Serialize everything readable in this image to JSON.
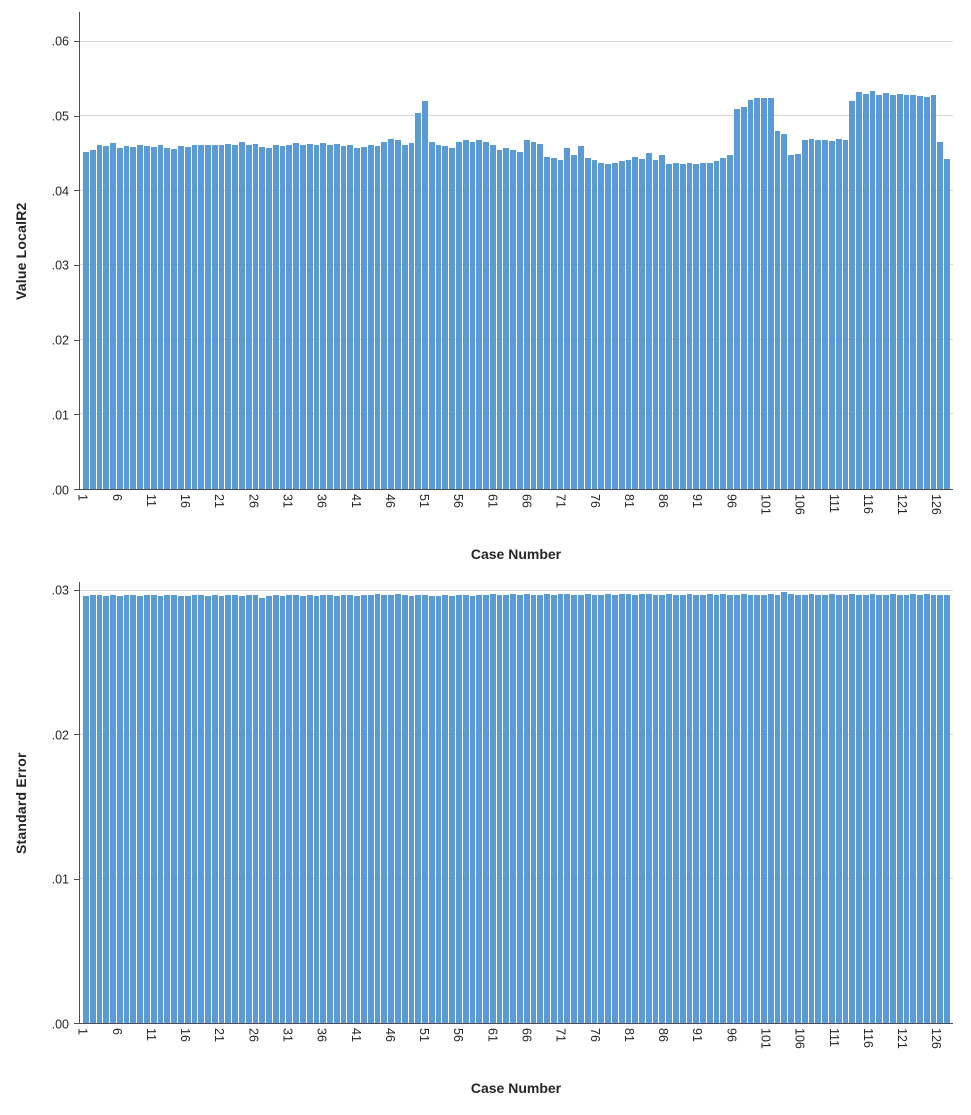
{
  "page": {
    "background": "#ffffff"
  },
  "chart_data": [
    {
      "type": "bar",
      "title": "",
      "ylabel": "Value LocalR2",
      "xlabel": "Case Number",
      "bar_color": "#5A9BD5",
      "grid_color": "#d9d9d9",
      "axis_color": "#4d4d4d",
      "legend": "none",
      "grid": true,
      "n_cases": 128,
      "ymax": 0.064,
      "ylim": [
        0,
        0.06
      ],
      "yticks": {
        "labels": [
          ".00",
          ".01",
          ".02",
          ".03",
          ".04",
          ".05",
          ".06"
        ],
        "values": [
          0,
          0.01,
          0.02,
          0.03,
          0.04,
          0.05,
          0.06
        ]
      },
      "x_tick_start": 1,
      "x_tick_step": 5,
      "x_tick_labels": [
        "1",
        "6",
        "11",
        "16",
        "21",
        "26",
        "31",
        "36",
        "41",
        "46",
        "51",
        "56",
        "61",
        "66",
        "71",
        "76",
        "81",
        "86",
        "91",
        "96",
        "101",
        "106",
        "111",
        "116",
        "121",
        "126"
      ],
      "values": [
        0.0452,
        0.0455,
        0.0462,
        0.046,
        0.0464,
        0.0458,
        0.046,
        0.0459,
        0.0461,
        0.046,
        0.0459,
        0.0461,
        0.0458,
        0.0456,
        0.046,
        0.0459,
        0.0461,
        0.0462,
        0.0462,
        0.0461,
        0.0462,
        0.0463,
        0.0462,
        0.0465,
        0.0461,
        0.0463,
        0.0459,
        0.0458,
        0.0461,
        0.046,
        0.0462,
        0.0464,
        0.0462,
        0.0463,
        0.0461,
        0.0464,
        0.0462,
        0.0463,
        0.046,
        0.0461,
        0.0458,
        0.0459,
        0.0462,
        0.046,
        0.0465,
        0.047,
        0.0468,
        0.0462,
        0.0464,
        0.0505,
        0.052,
        0.0465,
        0.0462,
        0.046,
        0.0458,
        0.0465,
        0.0468,
        0.0466,
        0.0468,
        0.0465,
        0.0462,
        0.0455,
        0.0458,
        0.0455,
        0.0452,
        0.0468,
        0.0466,
        0.0463,
        0.0446,
        0.0444,
        0.0442,
        0.0458,
        0.0448,
        0.046,
        0.0444,
        0.0442,
        0.0438,
        0.0436,
        0.0437,
        0.044,
        0.0442,
        0.0445,
        0.0443,
        0.0451,
        0.0442,
        0.0448,
        0.0436,
        0.0437,
        0.0436,
        0.0437,
        0.0436,
        0.0438,
        0.0437,
        0.044,
        0.0444,
        0.0448,
        0.051,
        0.0512,
        0.0522,
        0.0525,
        0.0525,
        0.0524,
        0.0481,
        0.0476,
        0.0448,
        0.045,
        0.0468,
        0.0469,
        0.0468,
        0.0468,
        0.0467,
        0.047,
        0.0468,
        0.052,
        0.0533,
        0.053,
        0.0534,
        0.0528,
        0.0532,
        0.0529,
        0.053,
        0.0528,
        0.0529,
        0.0527,
        0.0526,
        0.0528,
        0.0465,
        0.0443
      ]
    },
    {
      "type": "bar",
      "title": "",
      "ylabel": "Standard Error",
      "xlabel": "Case Number",
      "bar_color": "#5A9BD5",
      "grid_color": "#d9d9d9",
      "axis_color": "#4d4d4d",
      "legend": "none",
      "grid": true,
      "n_cases": 128,
      "ymax": 0.0306,
      "ylim": [
        0,
        0.03
      ],
      "yticks": {
        "labels": [
          ".00",
          ".01",
          ".02",
          ".03"
        ],
        "values": [
          0,
          0.01,
          0.02,
          0.03
        ]
      },
      "x_tick_start": 1,
      "x_tick_step": 5,
      "x_tick_labels": [
        "1",
        "6",
        "11",
        "16",
        "21",
        "26",
        "31",
        "36",
        "41",
        "46",
        "51",
        "56",
        "61",
        "66",
        "71",
        "76",
        "81",
        "86",
        "91",
        "96",
        "101",
        "106",
        "111",
        "116",
        "121",
        "126"
      ],
      "values": [
        0.0296,
        0.0297,
        0.0297,
        0.0296,
        0.0297,
        0.0296,
        0.0297,
        0.0297,
        0.0296,
        0.0297,
        0.0297,
        0.0296,
        0.0297,
        0.0297,
        0.0296,
        0.0296,
        0.0297,
        0.0297,
        0.0296,
        0.0297,
        0.0296,
        0.0297,
        0.0297,
        0.0296,
        0.0297,
        0.0297,
        0.0295,
        0.0296,
        0.0297,
        0.0296,
        0.0297,
        0.0297,
        0.0296,
        0.0297,
        0.0296,
        0.0297,
        0.0297,
        0.0296,
        0.0297,
        0.0297,
        0.0296,
        0.0297,
        0.0297,
        0.0298,
        0.0297,
        0.0297,
        0.0298,
        0.0297,
        0.0296,
        0.0297,
        0.0297,
        0.0296,
        0.0296,
        0.0297,
        0.0296,
        0.0297,
        0.0297,
        0.0296,
        0.0297,
        0.0297,
        0.0298,
        0.0297,
        0.0297,
        0.0298,
        0.0297,
        0.0298,
        0.0297,
        0.0297,
        0.0298,
        0.0297,
        0.0298,
        0.0298,
        0.0297,
        0.0297,
        0.0298,
        0.0297,
        0.0297,
        0.0298,
        0.0297,
        0.0298,
        0.0298,
        0.0297,
        0.0298,
        0.0298,
        0.0297,
        0.0297,
        0.0298,
        0.0297,
        0.0297,
        0.0298,
        0.0297,
        0.0297,
        0.0298,
        0.0297,
        0.0298,
        0.0297,
        0.0297,
        0.0298,
        0.0297,
        0.0297,
        0.0297,
        0.0298,
        0.0297,
        0.0299,
        0.0298,
        0.0297,
        0.0297,
        0.0298,
        0.0297,
        0.0297,
        0.0298,
        0.0297,
        0.0297,
        0.0298,
        0.0297,
        0.0297,
        0.0298,
        0.0297,
        0.0297,
        0.0298,
        0.0297,
        0.0297,
        0.0298,
        0.0297,
        0.0298,
        0.0297,
        0.0297,
        0.0297
      ]
    }
  ]
}
